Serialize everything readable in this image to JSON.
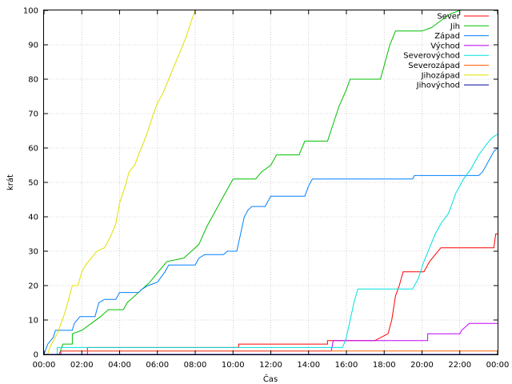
{
  "chart_data": {
    "type": "line",
    "xlabel": "Čas",
    "ylabel": "krát",
    "xlim": [
      0,
      24
    ],
    "ylim": [
      0,
      100
    ],
    "grid": true,
    "legend_position": "top-right",
    "x_ticks": [
      "00:00",
      "02:00",
      "04:00",
      "06:00",
      "08:00",
      "10:00",
      "12:00",
      "14:00",
      "16:00",
      "18:00",
      "20:00",
      "22:00",
      "00:00"
    ],
    "y_ticks": [
      0,
      10,
      20,
      30,
      40,
      50,
      60,
      70,
      80,
      90,
      100
    ],
    "series": [
      {
        "name": "Sever",
        "color": "#ff0000",
        "points": [
          [
            0,
            0
          ],
          [
            2.3,
            0
          ],
          [
            2.3,
            2
          ],
          [
            10.3,
            2
          ],
          [
            10.3,
            3
          ],
          [
            15,
            3
          ],
          [
            15,
            4
          ],
          [
            17.5,
            4
          ],
          [
            18.2,
            6
          ],
          [
            18.4,
            10
          ],
          [
            18.6,
            17
          ],
          [
            18.8,
            20
          ],
          [
            19,
            24
          ],
          [
            20.1,
            24
          ],
          [
            20.4,
            27
          ],
          [
            20.7,
            29
          ],
          [
            21,
            31
          ],
          [
            23.8,
            31
          ],
          [
            23.9,
            35
          ],
          [
            24,
            35
          ]
        ]
      },
      {
        "name": "Jih",
        "color": "#00c000",
        "points": [
          [
            0,
            0
          ],
          [
            0.8,
            0
          ],
          [
            1,
            3
          ],
          [
            1.5,
            3
          ],
          [
            1.5,
            6
          ],
          [
            2,
            7
          ],
          [
            2.5,
            9
          ],
          [
            3,
            11
          ],
          [
            3.4,
            13
          ],
          [
            4.2,
            13
          ],
          [
            4.4,
            15
          ],
          [
            4.8,
            17
          ],
          [
            5.2,
            19
          ],
          [
            5.6,
            21
          ],
          [
            6.2,
            25
          ],
          [
            6.5,
            27
          ],
          [
            7.4,
            28
          ],
          [
            7.8,
            30
          ],
          [
            8.2,
            32
          ],
          [
            8.6,
            37
          ],
          [
            9,
            41
          ],
          [
            9.5,
            46
          ],
          [
            10,
            51
          ],
          [
            11.2,
            51
          ],
          [
            11.5,
            53
          ],
          [
            12,
            55
          ],
          [
            12.3,
            58
          ],
          [
            13.5,
            58
          ],
          [
            13.8,
            62
          ],
          [
            15,
            62
          ],
          [
            15.3,
            67
          ],
          [
            15.6,
            72
          ],
          [
            16,
            77
          ],
          [
            16.2,
            80
          ],
          [
            17.8,
            80
          ],
          [
            18,
            84
          ],
          [
            18.3,
            90
          ],
          [
            18.6,
            94
          ],
          [
            20,
            94
          ],
          [
            20.5,
            95
          ],
          [
            21,
            97
          ],
          [
            21.5,
            99
          ],
          [
            22,
            100
          ]
        ]
      },
      {
        "name": "Západ",
        "color": "#0080ff",
        "points": [
          [
            0,
            0
          ],
          [
            0.2,
            3
          ],
          [
            0.5,
            5
          ],
          [
            0.6,
            7
          ],
          [
            1.5,
            7
          ],
          [
            1.6,
            9
          ],
          [
            1.9,
            11
          ],
          [
            2.7,
            11
          ],
          [
            2.8,
            13
          ],
          [
            2.9,
            15
          ],
          [
            3.2,
            16
          ],
          [
            3.8,
            16
          ],
          [
            4,
            18
          ],
          [
            5,
            18
          ],
          [
            5.2,
            19
          ],
          [
            5.5,
            20
          ],
          [
            6,
            21
          ],
          [
            6.4,
            24
          ],
          [
            6.6,
            26
          ],
          [
            8,
            26
          ],
          [
            8.2,
            28
          ],
          [
            8.5,
            29
          ],
          [
            9.5,
            29
          ],
          [
            9.7,
            30
          ],
          [
            10.2,
            30
          ],
          [
            10.4,
            35
          ],
          [
            10.6,
            40
          ],
          [
            10.8,
            42
          ],
          [
            11,
            43
          ],
          [
            11.7,
            43
          ],
          [
            12,
            46
          ],
          [
            13.8,
            46
          ],
          [
            14,
            49
          ],
          [
            14.2,
            51
          ],
          [
            19.5,
            51
          ],
          [
            19.6,
            52
          ],
          [
            23,
            52
          ],
          [
            23.2,
            53
          ],
          [
            23.5,
            56
          ],
          [
            23.8,
            59
          ],
          [
            24,
            60
          ]
        ]
      },
      {
        "name": "Východ",
        "color": "#c000ff",
        "points": [
          [
            0,
            0
          ],
          [
            0.8,
            0
          ],
          [
            0.9,
            1
          ],
          [
            15.2,
            1
          ],
          [
            15.3,
            4
          ],
          [
            20.3,
            4
          ],
          [
            20.3,
            6
          ],
          [
            22,
            6
          ],
          [
            22.1,
            7
          ],
          [
            22.5,
            9
          ],
          [
            24,
            9
          ]
        ]
      },
      {
        "name": "Severovýchod",
        "color": "#00e0e0",
        "points": [
          [
            0,
            0
          ],
          [
            0.7,
            0
          ],
          [
            0.7,
            2
          ],
          [
            15.8,
            2
          ],
          [
            16,
            5
          ],
          [
            16.2,
            10
          ],
          [
            16.4,
            15
          ],
          [
            16.6,
            19
          ],
          [
            19.5,
            19
          ],
          [
            19.8,
            22
          ],
          [
            20.1,
            27
          ],
          [
            20.4,
            31
          ],
          [
            20.7,
            35
          ],
          [
            21,
            38
          ],
          [
            21.4,
            41
          ],
          [
            21.8,
            47
          ],
          [
            22.2,
            51
          ],
          [
            22.6,
            54
          ],
          [
            23,
            58
          ],
          [
            23.4,
            61
          ],
          [
            23.7,
            63
          ],
          [
            24,
            64
          ]
        ]
      },
      {
        "name": "Severozápad",
        "color": "#ff6000",
        "points": [
          [
            0,
            0
          ],
          [
            0.9,
            0
          ],
          [
            0.9,
            1
          ],
          [
            24,
            1
          ]
        ]
      },
      {
        "name": "Jihozápad",
        "color": "#e0e000",
        "points": [
          [
            0,
            0
          ],
          [
            0.2,
            0
          ],
          [
            0.3,
            2
          ],
          [
            0.5,
            4
          ],
          [
            0.7,
            6
          ],
          [
            0.9,
            9
          ],
          [
            1.1,
            12
          ],
          [
            1.3,
            16
          ],
          [
            1.5,
            20
          ],
          [
            1.8,
            20
          ],
          [
            2,
            24
          ],
          [
            2.2,
            26
          ],
          [
            2.5,
            28
          ],
          [
            2.8,
            30
          ],
          [
            3.2,
            31
          ],
          [
            3.5,
            34
          ],
          [
            3.8,
            38
          ],
          [
            4,
            44
          ],
          [
            4.3,
            49
          ],
          [
            4.5,
            53
          ],
          [
            4.8,
            55
          ],
          [
            5,
            58
          ],
          [
            5.3,
            62
          ],
          [
            5.5,
            65
          ],
          [
            5.8,
            70
          ],
          [
            6,
            73
          ],
          [
            6.3,
            76
          ],
          [
            6.6,
            80
          ],
          [
            6.9,
            84
          ],
          [
            7.2,
            88
          ],
          [
            7.5,
            92
          ],
          [
            7.8,
            97
          ],
          [
            8,
            100
          ]
        ]
      },
      {
        "name": "Jihovýchod",
        "color": "#0000a0",
        "points": [
          [
            0,
            0
          ],
          [
            24,
            0
          ]
        ]
      }
    ]
  }
}
